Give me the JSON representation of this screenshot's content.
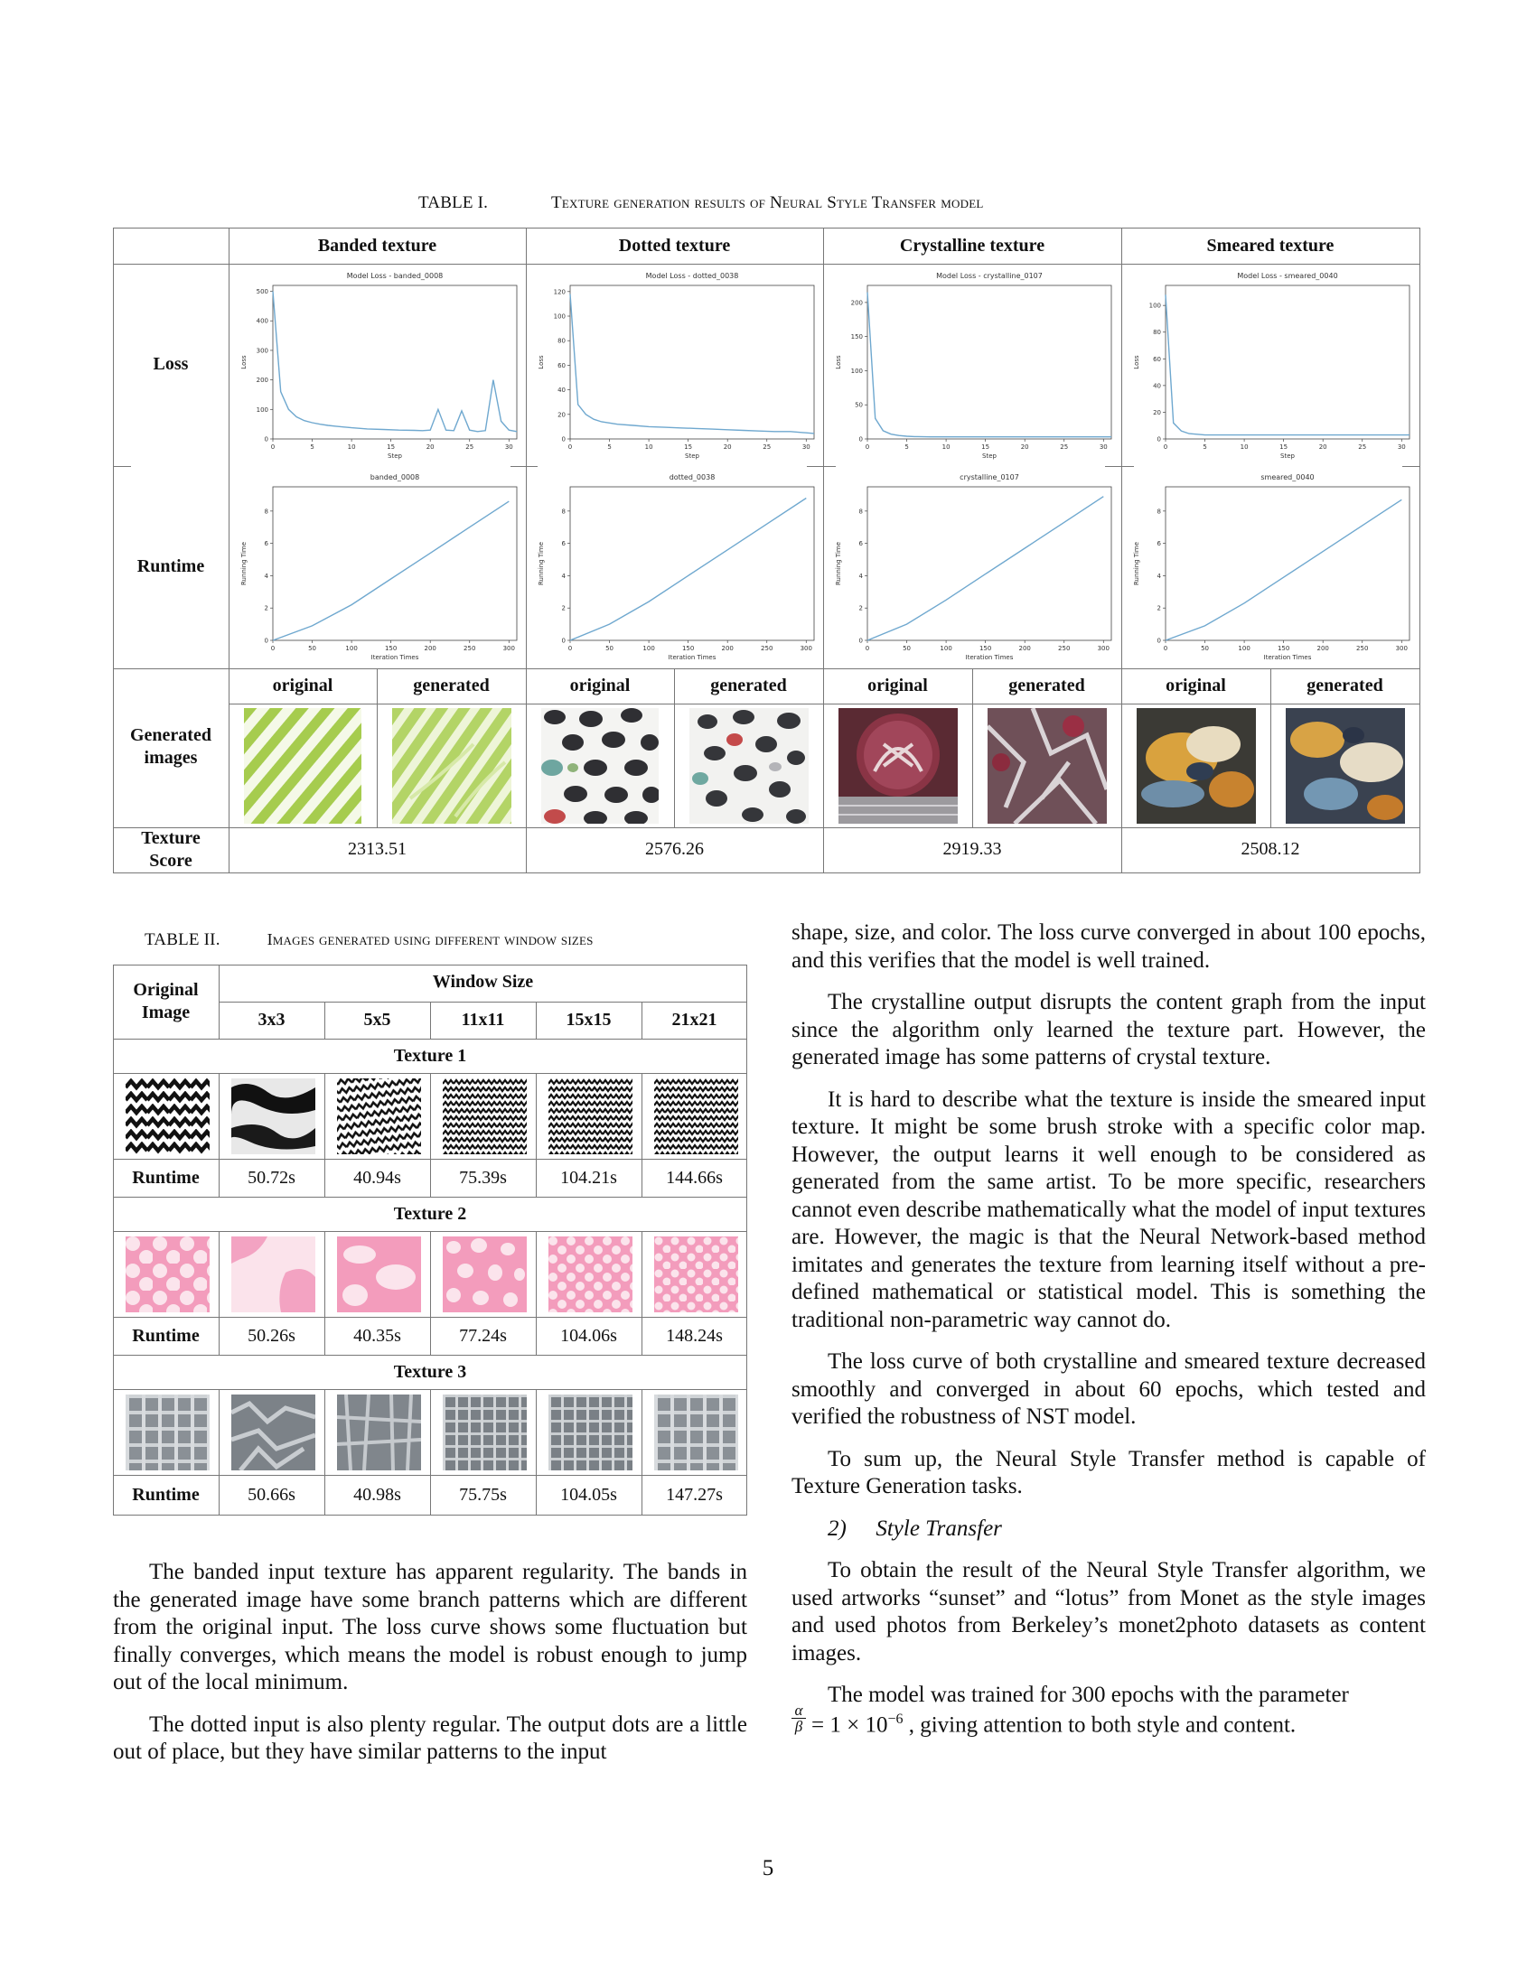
{
  "table1": {
    "label": "TABLE I.",
    "title": "Texture generation results of Neural Style Transfer model",
    "columns": [
      "Banded texture",
      "Dotted texture",
      "Crystalline texture",
      "Smeared texture"
    ],
    "rows": [
      "Loss",
      "Runtime",
      "Generated images",
      "Texture Score"
    ],
    "sub_headers": [
      "original",
      "generated"
    ],
    "scores": [
      "2313.51",
      "2576.26",
      "2919.33",
      "2508.12"
    ],
    "loss_plots": [
      {
        "title": "Model Loss - banded_0008",
        "xlabel": "Step",
        "ylabel": "Loss",
        "yticks": [
          "0",
          "100",
          "200",
          "300",
          "400",
          "500"
        ],
        "xticks": [
          "0",
          "5",
          "10",
          "15",
          "20",
          "25",
          "30"
        ]
      },
      {
        "title": "Model Loss - dotted_0038",
        "xlabel": "Step",
        "ylabel": "Loss",
        "yticks": [
          "0",
          "20",
          "40",
          "60",
          "80",
          "100",
          "120"
        ],
        "xticks": [
          "0",
          "5",
          "10",
          "15",
          "20",
          "25",
          "30"
        ]
      },
      {
        "title": "Model Loss - crystalline_0107",
        "xlabel": "Step",
        "ylabel": "Loss",
        "yticks": [
          "0",
          "50",
          "100",
          "150",
          "200"
        ],
        "xticks": [
          "0",
          "5",
          "10",
          "15",
          "20",
          "25",
          "30"
        ]
      },
      {
        "title": "Model Loss - smeared_0040",
        "xlabel": "Step",
        "ylabel": "Loss",
        "yticks": [
          "0",
          "20",
          "40",
          "60",
          "80",
          "100"
        ],
        "xticks": [
          "0",
          "5",
          "10",
          "15",
          "20",
          "25",
          "30"
        ]
      }
    ],
    "runtime_plots": [
      {
        "title": "banded_0008",
        "xlabel": "Iteration Times",
        "ylabel": "Running Time",
        "yticks": [
          "0",
          "2",
          "4",
          "6",
          "8"
        ],
        "xticks": [
          "0",
          "50",
          "100",
          "150",
          "200",
          "250",
          "300"
        ]
      },
      {
        "title": "dotted_0038",
        "xlabel": "Iteration Times",
        "ylabel": "Running Time",
        "yticks": [
          "0",
          "2",
          "4",
          "6",
          "8"
        ],
        "xticks": [
          "0",
          "50",
          "100",
          "150",
          "200",
          "250",
          "300"
        ]
      },
      {
        "title": "crystalline_0107",
        "xlabel": "Iteration Times",
        "ylabel": "Running Time",
        "yticks": [
          "0",
          "2",
          "4",
          "6",
          "8"
        ],
        "xticks": [
          "0",
          "50",
          "100",
          "150",
          "200",
          "250",
          "300"
        ]
      },
      {
        "title": "smeared_0040",
        "xlabel": "Iteration Times",
        "ylabel": "Running Time",
        "yticks": [
          "0",
          "2",
          "4",
          "6",
          "8"
        ],
        "xticks": [
          "0",
          "50",
          "100",
          "150",
          "200",
          "250",
          "300"
        ]
      }
    ]
  },
  "chart_data": [
    {
      "type": "line",
      "title": "Model Loss - banded_0008",
      "xlabel": "Step",
      "ylabel": "Loss",
      "ylim": [
        0,
        520
      ],
      "xlim": [
        0,
        31
      ],
      "series": [
        {
          "x": [
            0,
            1,
            2,
            3,
            4,
            5,
            6,
            7,
            8,
            10,
            12,
            14,
            16,
            18,
            19,
            20,
            21,
            22,
            23,
            24,
            25,
            26,
            27,
            28,
            29,
            30,
            31
          ],
          "values": [
            500,
            160,
            100,
            75,
            62,
            55,
            50,
            46,
            43,
            38,
            34,
            32,
            30,
            29,
            28,
            30,
            100,
            30,
            28,
            95,
            30,
            25,
            28,
            200,
            60,
            30,
            25
          ]
        }
      ]
    },
    {
      "type": "line",
      "title": "Model Loss - dotted_0038",
      "xlabel": "Step",
      "ylabel": "Loss",
      "ylim": [
        0,
        125
      ],
      "xlim": [
        0,
        31
      ],
      "series": [
        {
          "x": [
            0,
            1,
            2,
            3,
            4,
            5,
            6,
            8,
            10,
            12,
            14,
            16,
            18,
            20,
            22,
            24,
            26,
            28,
            30,
            31
          ],
          "values": [
            118,
            28,
            20,
            16,
            14,
            13,
            12,
            11,
            10,
            9.5,
            9,
            8.5,
            8,
            7.5,
            7,
            6.5,
            6,
            6,
            5,
            4.5
          ]
        }
      ]
    },
    {
      "type": "line",
      "title": "Model Loss - crystalline_0107",
      "xlabel": "Step",
      "ylabel": "Loss",
      "ylim": [
        0,
        225
      ],
      "xlim": [
        0,
        31
      ],
      "series": [
        {
          "x": [
            0,
            1,
            2,
            3,
            4,
            5,
            6,
            8,
            10,
            15,
            20,
            25,
            30,
            31
          ],
          "values": [
            215,
            30,
            12,
            7,
            5,
            4,
            3.5,
            3,
            3,
            3,
            3,
            3,
            3,
            3
          ]
        }
      ]
    },
    {
      "type": "line",
      "title": "Model Loss - smeared_0040",
      "xlabel": "Step",
      "ylabel": "Loss",
      "ylim": [
        0,
        115
      ],
      "xlim": [
        0,
        31
      ],
      "series": [
        {
          "x": [
            0,
            1,
            2,
            3,
            4,
            5,
            6,
            8,
            10,
            15,
            20,
            25,
            30,
            31
          ],
          "values": [
            108,
            12,
            6,
            4,
            3.5,
            3,
            3,
            3,
            3,
            3,
            3,
            3,
            3,
            3
          ]
        }
      ]
    },
    {
      "type": "line",
      "title": "banded_0008",
      "xlabel": "Iteration Times",
      "ylabel": "Running Time",
      "ylim": [
        0,
        9.5
      ],
      "xlim": [
        0,
        310
      ],
      "series": [
        {
          "x": [
            0,
            50,
            100,
            150,
            200,
            250,
            300
          ],
          "values": [
            0,
            0.9,
            2.2,
            3.8,
            5.4,
            7.0,
            8.6
          ]
        }
      ]
    },
    {
      "type": "line",
      "title": "dotted_0038",
      "xlabel": "Iteration Times",
      "ylabel": "Running Time",
      "ylim": [
        0,
        9.5
      ],
      "xlim": [
        0,
        310
      ],
      "series": [
        {
          "x": [
            0,
            50,
            100,
            150,
            200,
            250,
            300
          ],
          "values": [
            0,
            1.0,
            2.4,
            4.0,
            5.6,
            7.2,
            8.8
          ]
        }
      ]
    },
    {
      "type": "line",
      "title": "crystalline_0107",
      "xlabel": "Iteration Times",
      "ylabel": "Running Time",
      "ylim": [
        0,
        9.5
      ],
      "xlim": [
        0,
        310
      ],
      "series": [
        {
          "x": [
            0,
            50,
            100,
            150,
            200,
            250,
            300
          ],
          "values": [
            0,
            1.0,
            2.5,
            4.1,
            5.7,
            7.3,
            8.9
          ]
        }
      ]
    },
    {
      "type": "line",
      "title": "smeared_0040",
      "xlabel": "Iteration Times",
      "ylabel": "Running Time",
      "ylim": [
        0,
        9.5
      ],
      "xlim": [
        0,
        310
      ],
      "series": [
        {
          "x": [
            0,
            50,
            100,
            150,
            200,
            250,
            300
          ],
          "values": [
            0,
            0.9,
            2.3,
            3.9,
            5.5,
            7.1,
            8.7
          ]
        }
      ]
    }
  ],
  "table2": {
    "label": "TABLE II.",
    "title": "Images generated using different window sizes",
    "col0": "Original Image",
    "window_size": "Window Size",
    "sizes": [
      "3x3",
      "5x5",
      "11x11",
      "15x15",
      "21x21"
    ],
    "runtime_label": "Runtime",
    "textures": [
      {
        "name": "Texture 1",
        "runtimes": [
          "50.72s",
          "40.94s",
          "75.39s",
          "104.21s",
          "144.66s"
        ]
      },
      {
        "name": "Texture 2",
        "runtimes": [
          "50.26s",
          "40.35s",
          "77.24s",
          "104.06s",
          "148.24s"
        ]
      },
      {
        "name": "Texture 3",
        "runtimes": [
          "50.66s",
          "40.98s",
          "75.75s",
          "104.05s",
          "147.27s"
        ]
      }
    ]
  },
  "left_col": [
    "The banded input texture has apparent regularity. The bands in the generated image have some branch patterns which are different from the original input. The loss curve shows some fluctuation but finally converges, which means the model is robust enough to jump out of the local minimum.",
    "The dotted input is also plenty regular. The output dots are a little out of place, but they have similar patterns to the input"
  ],
  "right_col": [
    "shape, size, and color. The loss curve converged in about 100 epochs, and this verifies that the model is well trained.",
    "The crystalline output disrupts the content graph from the input since the algorithm only learned the texture part. However, the generated image has some patterns of crystal texture.",
    "It is hard to describe what the texture is inside the smeared input texture. It might be some brush stroke with a specific color map. However, the output learns it well enough to be considered as generated from the same artist. To be more specific, researchers cannot even describe mathematically what the model of input textures are. However, the magic is that the Neural Network-based method imitates and generates the texture from learning itself without a pre-defined mathematical or statistical model. This is something the traditional non-parametric way cannot do.",
    "The loss curve of both crystalline and smeared texture decreased smoothly and converged in about 60 epochs, which tested and verified the robustness of NST model.",
    "To sum up, the Neural Style Transfer method is capable of Texture Generation tasks.",
    "To obtain the result of the Neural Style Transfer algorithm, we used artworks “sunset” and “lotus” from Monet as the style images and used photos from Berkeley’s monet2photo datasets as content images."
  ],
  "section": {
    "number": "2)",
    "title": "Style Transfer"
  },
  "last_para": {
    "before": "The model was trained for 300 epochs with the parameter",
    "alpha": "α",
    "beta": "β",
    "formula": "= 1 × 10",
    "exponent": "−6",
    "after": ", giving attention to both style and content."
  },
  "page_number": "5",
  "colors": {
    "curve": "#6fa8cf",
    "grid": "#777777",
    "pink": "#f29bbb",
    "green": "#a9cf5b"
  }
}
